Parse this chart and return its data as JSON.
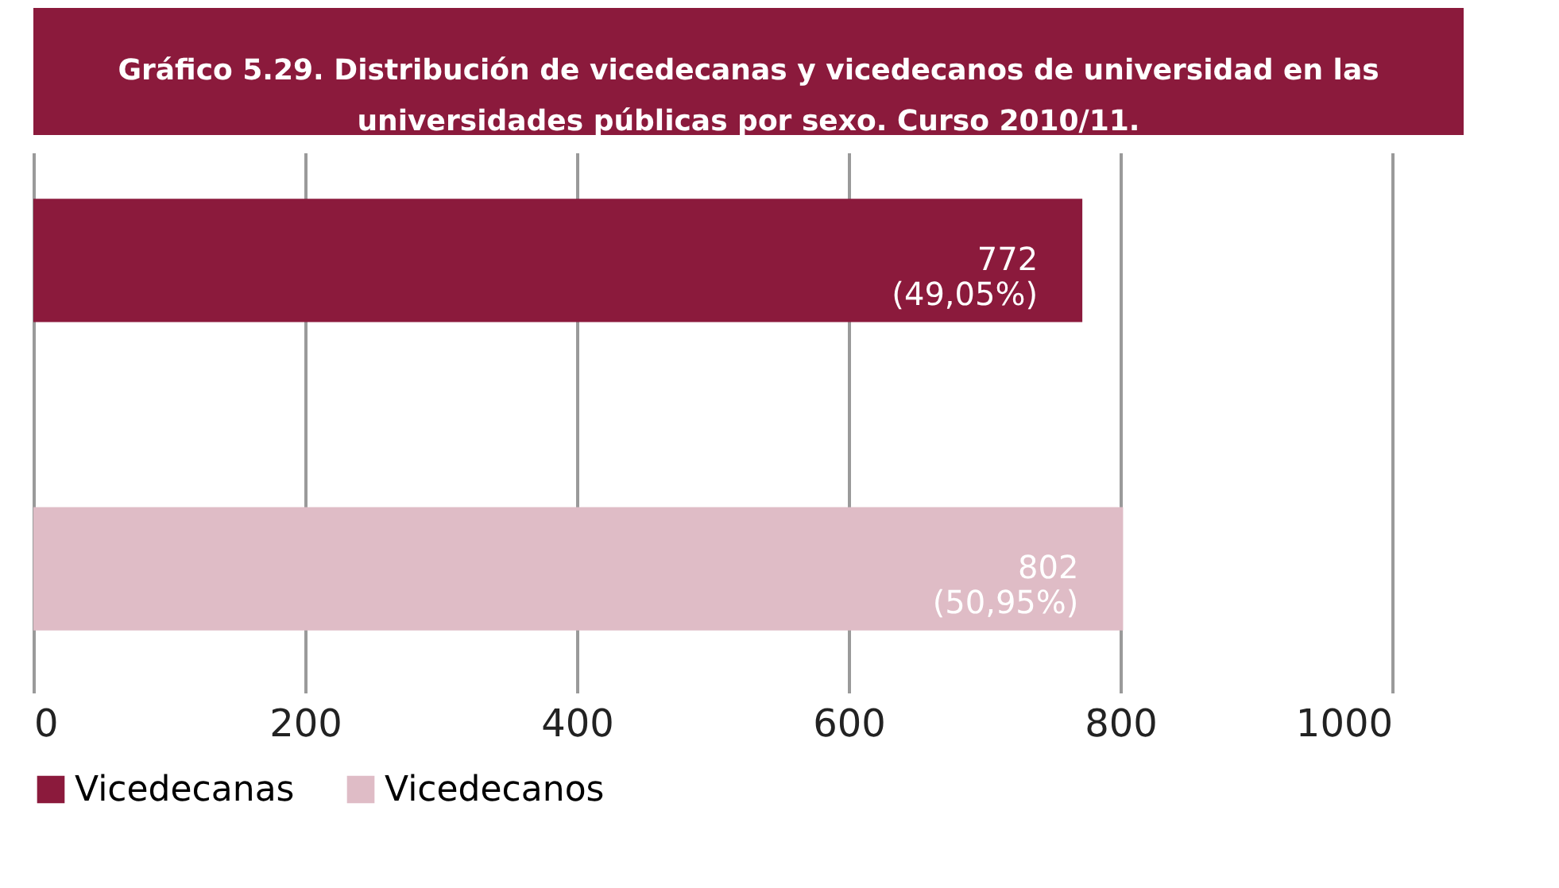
{
  "chart_data": {
    "type": "bar",
    "orientation": "horizontal",
    "title": "Gráfico 5.29. Distribución de vicedecanas y vicedecanos de universidad en las universidades públicas por sexo. Curso 2010/11.",
    "categories": [
      null,
      null
    ],
    "series": [
      {
        "name": "Vicedecanas",
        "color": "#8b1a3c",
        "values": [
          772,
          null
        ],
        "value_labels": [
          "772\n(49,05%)",
          null
        ]
      },
      {
        "name": "Vicedecanos",
        "color": "#dfbcc6",
        "values": [
          null,
          802
        ],
        "value_labels": [
          null,
          "802\n(50,95%)"
        ]
      }
    ],
    "xlim": [
      0,
      1000
    ],
    "xticks": [
      0,
      200,
      400,
      600,
      800,
      1000
    ],
    "grid": "x",
    "legend": "bottom",
    "tick_labels": "x"
  }
}
